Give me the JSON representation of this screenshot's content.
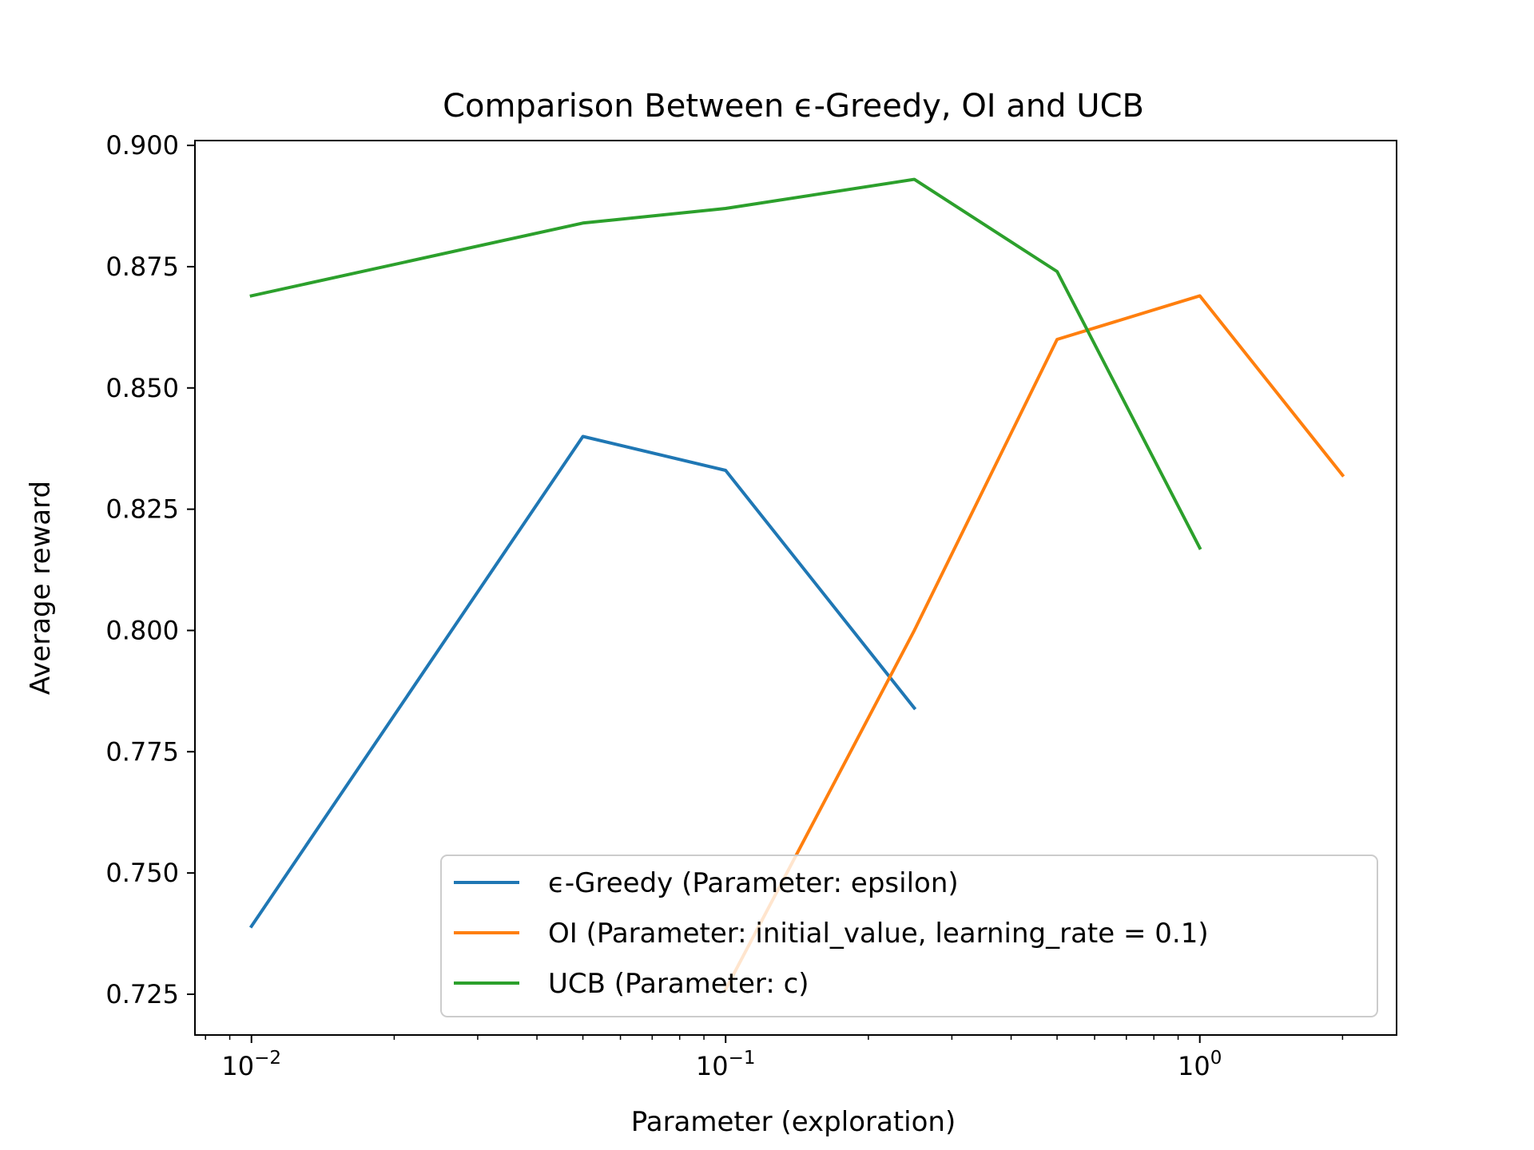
{
  "chart_data": {
    "type": "line",
    "title": "Comparison Between ϵ-Greedy, OI and UCB",
    "xlabel": "Parameter (exploration)",
    "ylabel": "Average reward",
    "xscale": "log",
    "xlim": [
      0.0076,
      2.6
    ],
    "ylim": [
      0.7166,
      0.901
    ],
    "x_ticks": [
      {
        "value": 0.01,
        "base": "10",
        "exp": "−2"
      },
      {
        "value": 0.1,
        "base": "10",
        "exp": "−1"
      },
      {
        "value": 1,
        "base": "10",
        "exp": "0"
      }
    ],
    "y_ticks": [
      {
        "value": 0.725,
        "label": "0.725"
      },
      {
        "value": 0.75,
        "label": "0.750"
      },
      {
        "value": 0.775,
        "label": "0.775"
      },
      {
        "value": 0.8,
        "label": "0.800"
      },
      {
        "value": 0.825,
        "label": "0.825"
      },
      {
        "value": 0.85,
        "label": "0.850"
      },
      {
        "value": 0.875,
        "label": "0.875"
      },
      {
        "value": 0.9,
        "label": "0.900"
      }
    ],
    "grid": false,
    "legend_position": "bottom-right",
    "series": [
      {
        "name": "ϵ-Greedy (Parameter: epsilon)",
        "color": "#1f77b4",
        "x": [
          0.01,
          0.05,
          0.1,
          0.25
        ],
        "y": [
          0.739,
          0.84,
          0.833,
          0.784
        ]
      },
      {
        "name": "OI (Parameter: initial_value, learning_rate = 0.1)",
        "color": "#ff7f0e",
        "x": [
          0.1,
          0.25,
          0.5,
          1,
          2
        ],
        "y": [
          0.726,
          0.8,
          0.86,
          0.869,
          0.832
        ]
      },
      {
        "name": "UCB (Parameter: c)",
        "color": "#2ca02c",
        "x": [
          0.01,
          0.05,
          0.1,
          0.25,
          0.5,
          1
        ],
        "y": [
          0.869,
          0.884,
          0.887,
          0.893,
          0.874,
          0.817
        ]
      }
    ]
  }
}
